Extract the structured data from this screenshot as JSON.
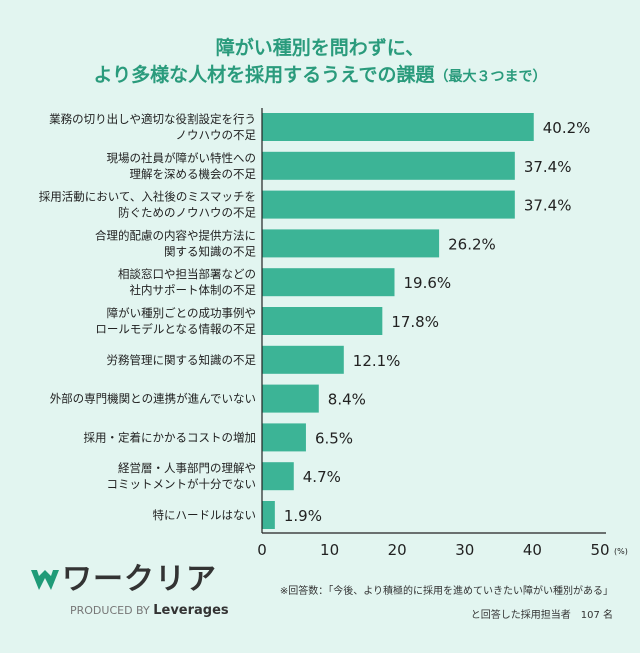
{
  "title": {
    "line1": "障がい種別を問わずに、",
    "line2": "より多様な人材を採用するうえでの課題",
    "line2_suffix": "（最大３つまで）"
  },
  "chart_data": {
    "type": "bar",
    "orientation": "horizontal",
    "categories": [
      [
        "業務の切り出しや適切な役割設定を行う",
        "ノウハウの不足"
      ],
      [
        "現場の社員が障がい特性への",
        "理解を深める機会の不足"
      ],
      [
        "採用活動において、入社後のミスマッチを",
        "防ぐためのノウハウの不足"
      ],
      [
        "合理的配慮の内容や提供方法に",
        "関する知識の不足"
      ],
      [
        "相談窓口や担当部署などの",
        "社内サポート体制の不足"
      ],
      [
        "障がい種別ごとの成功事例や",
        "ロールモデルとなる情報の不足"
      ],
      [
        "労務管理に関する知識の不足"
      ],
      [
        "外部の専門機関との連携が進んでいない"
      ],
      [
        "採用・定着にかかるコストの増加"
      ],
      [
        "経営層・人事部門の理解や",
        "コミットメントが十分でない"
      ],
      [
        "特にハードルはない"
      ]
    ],
    "values": [
      40.2,
      37.4,
      37.4,
      26.2,
      19.6,
      17.8,
      12.1,
      8.4,
      6.5,
      4.7,
      1.9
    ],
    "value_labels": [
      "40.2%",
      "37.4%",
      "37.4%",
      "26.2%",
      "19.6%",
      "17.8%",
      "12.1%",
      "8.4%",
      "6.5%",
      "4.7%",
      "1.9%"
    ],
    "xlim": [
      0,
      50
    ],
    "xticks": [
      "0",
      "10",
      "20",
      "30",
      "40",
      "50"
    ],
    "xunit": "(%)",
    "grid": false,
    "bar_color": "#3cb496"
  },
  "footer": {
    "brand": "ワークリア",
    "produced_by": "PRODUCED BY",
    "company": "Leverages",
    "note_line1": "※回答数：「今後、より積極的に採用を進めていきたい障がい種別がある」",
    "note_line2": "と回答した採用担当者　107 名",
    "logo_color": "#1f9b78"
  }
}
